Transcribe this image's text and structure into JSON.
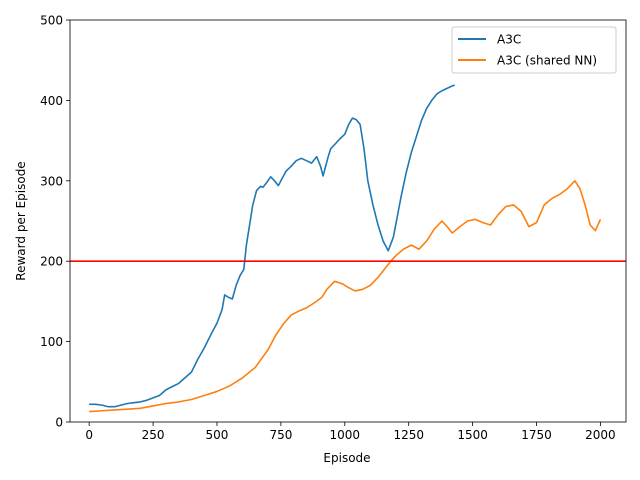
{
  "chart_data": {
    "type": "line",
    "title": "",
    "xlabel": "Episode",
    "ylabel": "Reward per Episode",
    "xlim": [
      -75,
      2100
    ],
    "ylim": [
      0,
      500
    ],
    "xticks": [
      "0",
      "250",
      "500",
      "750",
      "1000",
      "1250",
      "1500",
      "1750",
      "2000"
    ],
    "yticks": [
      "0",
      "100",
      "200",
      "300",
      "400",
      "500"
    ],
    "xtick_values": [
      0,
      250,
      500,
      750,
      1000,
      1250,
      1500,
      1750,
      2000
    ],
    "ytick_values": [
      0,
      100,
      200,
      300,
      400,
      500
    ],
    "grid": false,
    "legend_position": "top-right",
    "reference_line": {
      "y": 200,
      "color": "#ff0000"
    },
    "series": [
      {
        "name": "A3C",
        "color": "#1f77b4",
        "x": [
          0,
          25,
          50,
          75,
          100,
          125,
          150,
          175,
          200,
          225,
          250,
          275,
          300,
          325,
          350,
          375,
          400,
          425,
          450,
          475,
          500,
          520,
          530,
          545,
          560,
          575,
          590,
          605,
          615,
          625,
          640,
          655,
          670,
          680,
          695,
          710,
          725,
          740,
          755,
          770,
          790,
          810,
          830,
          850,
          870,
          890,
          905,
          915,
          925,
          935,
          945,
          960,
          980,
          1000,
          1015,
          1030,
          1045,
          1060,
          1075,
          1090,
          1110,
          1130,
          1150,
          1170,
          1190,
          1205,
          1220,
          1240,
          1260,
          1280,
          1300,
          1320,
          1340,
          1360,
          1380,
          1400,
          1420,
          1430
        ],
        "values": [
          22,
          22,
          21,
          19,
          19,
          21,
          23,
          24,
          25,
          27,
          30,
          33,
          40,
          44,
          48,
          55,
          62,
          78,
          92,
          108,
          123,
          140,
          158,
          155,
          153,
          170,
          182,
          190,
          220,
          240,
          270,
          288,
          293,
          292,
          298,
          305,
          300,
          294,
          303,
          312,
          318,
          325,
          328,
          325,
          322,
          330,
          318,
          306,
          318,
          330,
          340,
          345,
          352,
          358,
          370,
          378,
          376,
          370,
          340,
          300,
          270,
          245,
          225,
          213,
          230,
          255,
          280,
          310,
          335,
          355,
          375,
          390,
          400,
          408,
          412,
          415,
          418,
          419
        ]
      },
      {
        "name": "A3C (shared NN)",
        "color": "#ff7f0e",
        "x": [
          0,
          50,
          100,
          150,
          200,
          250,
          300,
          350,
          400,
          450,
          500,
          550,
          600,
          650,
          700,
          730,
          760,
          790,
          820,
          850,
          880,
          910,
          930,
          960,
          990,
          1010,
          1040,
          1070,
          1100,
          1130,
          1160,
          1180,
          1200,
          1230,
          1260,
          1290,
          1320,
          1350,
          1380,
          1400,
          1420,
          1450,
          1480,
          1510,
          1540,
          1570,
          1600,
          1630,
          1660,
          1690,
          1720,
          1750,
          1780,
          1810,
          1840,
          1870,
          1900,
          1920,
          1940,
          1960,
          1980,
          2000
        ],
        "values": [
          13,
          14,
          15,
          16,
          17,
          20,
          23,
          25,
          28,
          33,
          38,
          45,
          55,
          68,
          90,
          108,
          122,
          133,
          138,
          142,
          148,
          155,
          165,
          175,
          172,
          168,
          163,
          165,
          170,
          180,
          192,
          200,
          207,
          215,
          220,
          215,
          225,
          240,
          250,
          243,
          235,
          243,
          250,
          252,
          248,
          245,
          258,
          268,
          270,
          262,
          243,
          248,
          270,
          278,
          283,
          290,
          300,
          290,
          270,
          245,
          238,
          252
        ]
      }
    ]
  }
}
